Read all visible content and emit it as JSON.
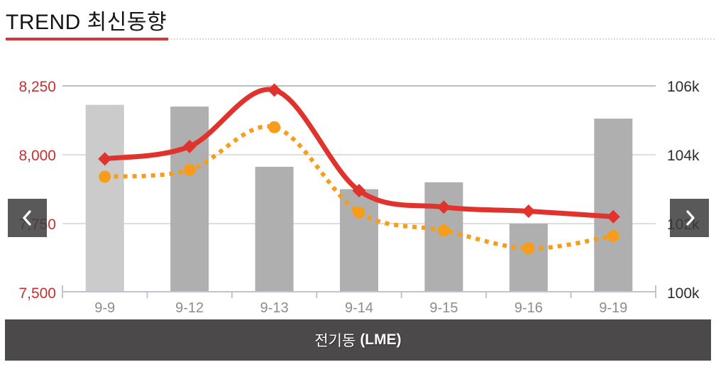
{
  "title": "TREND 최신동향",
  "nav": {
    "prev_label": "previous slide",
    "next_label": "next slide"
  },
  "footer": {
    "label": "전기동",
    "label_bold": "(LME)"
  },
  "colors": {
    "accent_red": "#d03a3a",
    "line_red": "#e0332e",
    "line_orange": "#f89c1b",
    "bar_first": "#cbcbcb",
    "bar_default": "#b0afaf",
    "grid_top": "#a9a9a9",
    "grid_mid": "#d4d4d4",
    "axis_line": "#bcc5d2",
    "left_axis_text": "#c62f2f",
    "right_axis_text": "#2d2d2d",
    "x_axis_text": "#8c8c8c",
    "footer_bg": "#4b4949"
  },
  "chart_data": {
    "type": "combo (bar + 2 smoothed lines, dual y-axis)",
    "title": "전기동 (LME)",
    "categories": [
      "9-9",
      "9-12",
      "9-13",
      "9-14",
      "9-15",
      "9-16",
      "9-19"
    ],
    "left_axis": {
      "ticks": [
        "7,500",
        "7,750",
        "8,000",
        "8,250"
      ],
      "values": [
        7500,
        7750,
        8000,
        8250
      ],
      "min": 7500,
      "max": 8250
    },
    "right_axis": {
      "ticks": [
        "100k",
        "102k",
        "104k",
        "106k"
      ],
      "values": [
        100000,
        102000,
        104000,
        106000
      ],
      "min": 100000,
      "max": 106000
    },
    "grid": "horizontal only",
    "legend": "none",
    "series": [
      {
        "name": "bars-right-axis",
        "type": "bar",
        "axis": "right",
        "values": [
          105450,
          105400,
          103650,
          103000,
          103200,
          102000,
          105050
        ]
      },
      {
        "name": "red-solid-line",
        "type": "line",
        "axis": "left",
        "marker": "diamond",
        "dashed": false,
        "values": [
          7985,
          8030,
          8235,
          7870,
          7810,
          7795,
          7775
        ]
      },
      {
        "name": "orange-dotted-line",
        "type": "line",
        "axis": "left",
        "marker": "circle",
        "dashed": true,
        "values": [
          7920,
          7945,
          8100,
          7790,
          7725,
          7660,
          7705
        ]
      }
    ]
  }
}
